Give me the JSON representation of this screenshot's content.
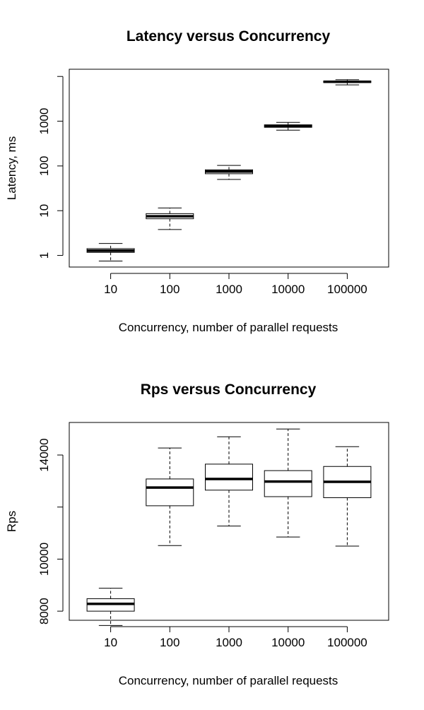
{
  "chart_data": [
    {
      "type": "boxplot",
      "title": "Latency versus Concurrency",
      "xlabel": "Concurrency, number of parallel requests",
      "ylabel": "Latency, ms",
      "yscale": "log",
      "ylim": [
        0.55,
        14500
      ],
      "yticks": [
        1,
        10,
        100,
        1000,
        10000
      ],
      "ytick_labels": [
        "1",
        "10",
        "100",
        "1000",
        ""
      ],
      "categories": [
        "10",
        "100",
        "1000",
        "10000",
        "100000"
      ],
      "boxes": [
        {
          "whisker_low": 0.75,
          "q1": 1.17,
          "median": 1.28,
          "q3": 1.42,
          "whisker_high": 1.85
        },
        {
          "whisker_low": 3.8,
          "q1": 6.6,
          "median": 7.5,
          "q3": 8.6,
          "whisker_high": 11.5
        },
        {
          "whisker_low": 50,
          "q1": 67,
          "median": 75,
          "q3": 82,
          "whisker_high": 103
        },
        {
          "whisker_low": 630,
          "q1": 730,
          "median": 780,
          "q3": 830,
          "whisker_high": 940
        },
        {
          "whisker_low": 6500,
          "q1": 7300,
          "median": 7600,
          "q3": 7900,
          "whisker_high": 8500
        }
      ],
      "grid": false,
      "legend": "none"
    },
    {
      "type": "boxplot",
      "title": "Rps versus Concurrency",
      "xlabel": "Concurrency, number of parallel requests",
      "ylabel": "Rps",
      "yscale": "linear",
      "ylim": [
        7650,
        15250
      ],
      "yticks": [
        8000,
        10000,
        12000,
        14000
      ],
      "ytick_labels": [
        "8000",
        "10000",
        "",
        "14000"
      ],
      "categories": [
        "10",
        "100",
        "1000",
        "10000",
        "100000"
      ],
      "boxes": [
        {
          "whisker_low": 7450,
          "q1": 8000,
          "median": 8280,
          "q3": 8480,
          "whisker_high": 8880
        },
        {
          "whisker_low": 10520,
          "q1": 12050,
          "median": 12750,
          "q3": 13080,
          "whisker_high": 14270
        },
        {
          "whisker_low": 11270,
          "q1": 12650,
          "median": 13080,
          "q3": 13650,
          "whisker_high": 14700
        },
        {
          "whisker_low": 10850,
          "q1": 12400,
          "median": 12980,
          "q3": 13400,
          "whisker_high": 15000
        },
        {
          "whisker_low": 10500,
          "q1": 12360,
          "median": 12970,
          "q3": 13560,
          "whisker_high": 14320
        }
      ],
      "grid": false,
      "legend": "none"
    }
  ]
}
